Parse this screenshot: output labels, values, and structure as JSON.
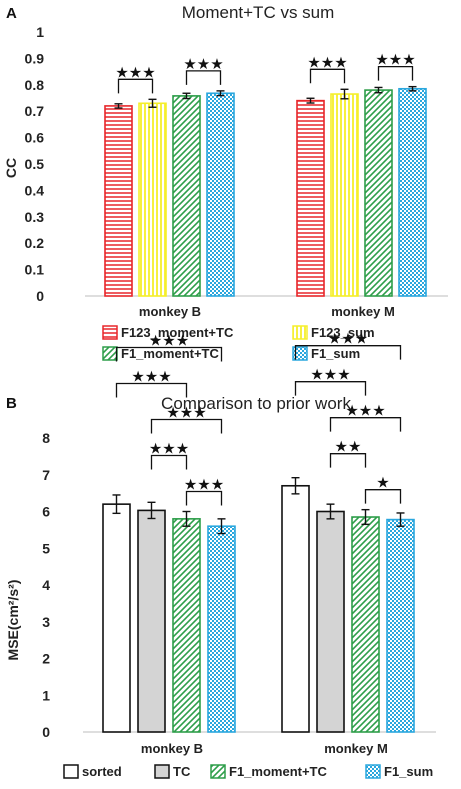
{
  "chart_data": [
    {
      "type": "bar",
      "panel_label": "A",
      "title": "Moment+TC vs sum",
      "ylabel": "CC",
      "ylim": [
        0,
        1
      ],
      "yticks": [
        "0",
        "0.1",
        "0.2",
        "0.3",
        "0.4",
        "0.5",
        "0.6",
        "0.7",
        "0.8",
        "0.9",
        "1"
      ],
      "categories": [
        "monkey B",
        "monkey M"
      ],
      "series": [
        {
          "name": "F123_moment+TC",
          "color": "#e8262a",
          "pattern": "horizontal-lines",
          "values": [
            0.72,
            0.74
          ],
          "errors": [
            0.008,
            0.009
          ]
        },
        {
          "name": "F123_sum",
          "color": "#f5ef2a",
          "pattern": "vertical-lines",
          "values": [
            0.73,
            0.765
          ],
          "errors": [
            0.015,
            0.018
          ]
        },
        {
          "name": "F1_moment+TC",
          "color": "#2e9e4a",
          "pattern": "diagonal-lines",
          "values": [
            0.758,
            0.78
          ],
          "errors": [
            0.01,
            0.01
          ]
        },
        {
          "name": "F1_sum",
          "color": "#2aa7de",
          "pattern": "checker",
          "values": [
            0.768,
            0.785
          ],
          "errors": [
            0.009,
            0.008
          ]
        }
      ],
      "significance": [
        {
          "group": 0,
          "from": 0,
          "to": 1,
          "stars": "★★★"
        },
        {
          "group": 0,
          "from": 2,
          "to": 3,
          "stars": "★★★"
        },
        {
          "group": 1,
          "from": 0,
          "to": 1,
          "stars": "★★★"
        },
        {
          "group": 1,
          "from": 2,
          "to": 3,
          "stars": "★★★"
        }
      ],
      "legend_position": "bottom"
    },
    {
      "type": "bar",
      "panel_label": "B",
      "title": "Comparison to prior work",
      "ylabel": "MSE(cm²/s²)",
      "ylim": [
        0,
        8
      ],
      "yticks": [
        "0",
        "1",
        "2",
        "3",
        "4",
        "5",
        "6",
        "7",
        "8"
      ],
      "categories": [
        "monkey B",
        "monkey M"
      ],
      "series": [
        {
          "name": "sorted",
          "color": "#ffffff",
          "pattern": "solid",
          "values": [
            6.2,
            6.7
          ],
          "errors": [
            0.25,
            0.22
          ]
        },
        {
          "name": "TC",
          "color": "#d4d4d4",
          "pattern": "solid",
          "values": [
            6.03,
            6.0
          ],
          "errors": [
            0.22,
            0.2
          ]
        },
        {
          "name": "F1_moment+TC",
          "color": "#2e9e4a",
          "pattern": "diagonal-lines",
          "values": [
            5.8,
            5.85
          ],
          "errors": [
            0.2,
            0.2
          ]
        },
        {
          "name": "F1_sum",
          "color": "#2aa7de",
          "pattern": "checker",
          "values": [
            5.6,
            5.78
          ],
          "errors": [
            0.2,
            0.18
          ]
        }
      ],
      "significance": [
        {
          "group": 0,
          "from": 0,
          "to": 3,
          "stars": "★★★"
        },
        {
          "group": 0,
          "from": 1,
          "to": 3,
          "stars": "★★★"
        },
        {
          "group": 0,
          "from": 0,
          "to": 2,
          "stars": "★★★"
        },
        {
          "group": 0,
          "from": 1,
          "to": 2,
          "stars": "★★★"
        },
        {
          "group": 0,
          "from": 2,
          "to": 3,
          "stars": "★★★"
        },
        {
          "group": 1,
          "from": 0,
          "to": 3,
          "stars": "★★★"
        },
        {
          "group": 1,
          "from": 1,
          "to": 3,
          "stars": "★★★"
        },
        {
          "group": 1,
          "from": 0,
          "to": 2,
          "stars": "★★★"
        },
        {
          "group": 1,
          "from": 1,
          "to": 2,
          "stars": "★★"
        },
        {
          "group": 1,
          "from": 2,
          "to": 3,
          "stars": "★"
        }
      ],
      "legend_position": "bottom"
    }
  ]
}
